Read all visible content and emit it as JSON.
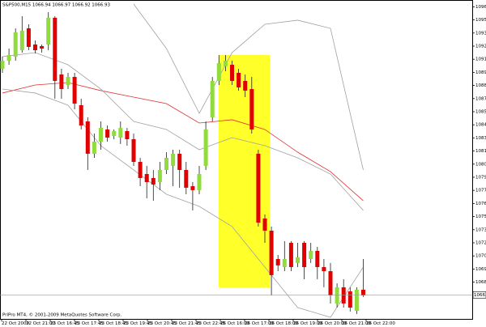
{
  "chart_data": {
    "type": "candlestick",
    "title": "S&P500,M15  1066.94 1066.97 1066.92 1066.93",
    "footer": "PriPro MT4, © 2001-2009 MetaQuotes Software Corp.",
    "last_price": 1066.94,
    "up_color": "#8fdc3c",
    "down_color": "#e00000",
    "ylim": [
      1064.38,
      1097.3
    ],
    "yticks": [
      {
        "value": 1096.6,
        "label": "1096.60"
      },
      1095.25,
      {
        "value": 1093.9,
        "label": "1093.90"
      },
      1092.55,
      {
        "value": 1091.2,
        "label": "1091.20"
      },
      1089.85,
      {
        "value": 1088.5,
        "label": "1088.50"
      },
      1087.15,
      {
        "value": 1085.8,
        "label": "1085.80"
      },
      1084.45,
      {
        "value": 1083.1,
        "label": "1083.10"
      },
      1081.75,
      {
        "value": 1080.4,
        "label": "1080.40"
      },
      1079.05,
      {
        "value": 1077.7,
        "label": "1077.70"
      },
      1076.35,
      {
        "value": 1075,
        "label": "1075.00"
      },
      1073.65,
      {
        "value": 1072.3,
        "label": "1072.30"
      },
      1070.95,
      {
        "value": 1069.6,
        "label": "1069.60"
      },
      1068.25
    ],
    "x_labels": [
      "22 Oct 2009",
      "22 Oct 21:00",
      "23 Oct 16:45",
      "23 Oct 17:45",
      "23 Oct 18:45",
      "23 Oct 19:45",
      "23 Oct 20:45",
      "23 Oct 21:45",
      "23 Oct 22:45",
      "26 Oct 16:00",
      "26 Oct 17:00",
      "26 Oct 18:00",
      "26 Oct 19:00",
      "26 Oct 20:00",
      "26 Oct 21:00",
      "26 Oct 22:00"
    ],
    "open": [
      1090.22,
      1091.05,
      1091.47,
      1092.13,
      1094.38,
      1092.72,
      1092.55,
      1092.72,
      1095.47,
      1089.63,
      1088.55,
      1089.38,
      1086.47,
      1084.8,
      1081.47,
      1082.72,
      1083.97,
      1083.3,
      1083.13,
      1083.8,
      1082.97,
      1080.63,
      1079.38,
      1078.97,
      1078.55,
      1079.8,
      1080.22,
      1081.47,
      1079.8,
      1078.13,
      1077.72,
      1080.22,
      1085.22,
      1088.97,
      1090.47,
      1090.63,
      1089.8,
      1088.97,
      1088.13,
      1081.47,
      1074.8,
      1073.55,
      1070.63,
      1069.8,
      1072.3,
      1070.22,
      1072.3,
      1070.63,
      1071.47,
      1069.8,
      1069.38,
      1066.05,
      1067.72,
      1067.3,
      1065.3,
      1067.47
    ],
    "high": [
      1091.47,
      1092.3,
      1094.38,
      1095.63,
      1094.8,
      1093.13,
      1092.72,
      1096.05,
      1095.63,
      1090.22,
      1089.8,
      1089.8,
      1087.13,
      1085.22,
      1083.55,
      1084.8,
      1084.38,
      1083.97,
      1084.8,
      1084.13,
      1083.55,
      1081.05,
      1080.22,
      1079.8,
      1080.63,
      1081.63,
      1081.88,
      1081.88,
      1080.63,
      1078.55,
      1080.22,
      1084.8,
      1089.38,
      1091.63,
      1091.63,
      1091.05,
      1090.22,
      1089.63,
      1089.38,
      1081.88,
      1075.22,
      1073.97,
      1071.05,
      1072.47,
      1072.47,
      1072.3,
      1072.47,
      1072.3,
      1071.88,
      1070.63,
      1070.22,
      1068.13,
      1068.55,
      1067.72,
      1067.72,
      1070.63
    ],
    "low": [
      1089.8,
      1090.63,
      1091.05,
      1091.88,
      1092.13,
      1091.8,
      1091.88,
      1092.13,
      1087.13,
      1087.13,
      1088.13,
      1086.05,
      1083.97,
      1079.8,
      1081.05,
      1081.88,
      1082.72,
      1082.97,
      1082.47,
      1082.3,
      1080.22,
      1078.13,
      1076.88,
      1076.63,
      1077.72,
      1079.38,
      1078.13,
      1077.97,
      1077.3,
      1075.63,
      1077.3,
      1079.8,
      1084.8,
      1088.55,
      1089.97,
      1088.55,
      1087.97,
      1087.3,
      1083.55,
      1073.97,
      1072.3,
      1066.88,
      1069.38,
      1069.38,
      1069.38,
      1069.8,
      1068.55,
      1070.22,
      1068.55,
      1067.72,
      1066.05,
      1065.63,
      1065.63,
      1065.22,
      1064.97,
      1066.72
    ],
    "close": [
      1091.05,
      1091.63,
      1093.97,
      1094.13,
      1092.47,
      1092.13,
      1092.3,
      1095.47,
      1088.97,
      1088.13,
      1089.38,
      1086.63,
      1084.38,
      1081.47,
      1082.72,
      1084.13,
      1083.13,
      1083.8,
      1084.13,
      1082.97,
      1080.63,
      1078.97,
      1078.55,
      1078.3,
      1079.8,
      1081.05,
      1081.47,
      1079.8,
      1077.97,
      1077.72,
      1079.38,
      1083.97,
      1088.97,
      1090.8,
      1091.05,
      1088.97,
      1088.3,
      1087.97,
      1083.97,
      1074.38,
      1073.55,
      1068.97,
      1069.97,
      1070.63,
      1069.8,
      1070.8,
      1069.8,
      1071.47,
      1069.8,
      1069.38,
      1066.88,
      1067.72,
      1066.05,
      1065.63,
      1067.47,
      1066.88
    ],
    "lines": [
      {
        "color": "#e03030",
        "x": [
          0,
          5,
          10,
          15,
          20,
          25,
          30,
          35,
          40,
          45,
          50,
          55
        ],
        "values": [
          1087.72,
          1088.55,
          1088.8,
          1087.97,
          1087.3,
          1086.63,
          1084.63,
          1084.97,
          1083.97,
          1081.63,
          1079.63,
          1076.63
        ]
      },
      {
        "color": "#a0a0a0",
        "x": [
          20,
          25,
          30,
          35,
          40,
          45,
          50,
          55
        ],
        "values": [
          1096.88,
          1092.3,
          1085.63,
          1091.88,
          1094.8,
          1095.22,
          1094.38,
          1079.8
        ]
      },
      {
        "color": "#a0a0a0",
        "x": [
          0,
          5,
          10,
          15,
          20,
          25,
          30,
          35,
          40,
          45,
          50,
          55
        ],
        "values": [
          1091.47,
          1091.88,
          1090.63,
          1088.13,
          1084.8,
          1083.97,
          1081.88,
          1083.13,
          1082.3,
          1081.05,
          1079.38,
          1075.63
        ]
      },
      {
        "color": "#a0a0a0",
        "x": [
          0,
          5,
          10,
          15,
          20,
          25,
          30,
          35,
          40,
          45,
          50,
          55
        ],
        "values": [
          1088.13,
          1087.72,
          1086.47,
          1082.3,
          1079.8,
          1077.3,
          1076.05,
          1073.97,
          1069.8,
          1065.63,
          1064.63,
          1069.8
        ]
      }
    ]
  }
}
